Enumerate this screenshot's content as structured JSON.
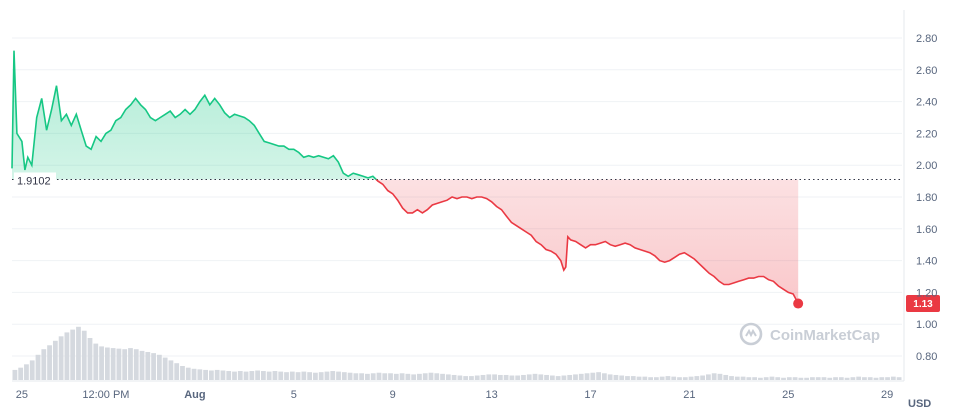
{
  "chart_data": {
    "type": "area",
    "ylim": [
      0.7,
      2.95
    ],
    "yticks": [
      "2.80",
      "2.60",
      "2.40",
      "2.20",
      "2.00",
      "1.80",
      "1.60",
      "1.40",
      "1.20",
      "1.00",
      "0.80"
    ],
    "x_labels": [
      {
        "label": "25",
        "day": 0
      },
      {
        "label": "12:00 PM",
        "day": 0.85
      },
      {
        "label": "Aug",
        "day": 1.75
      },
      {
        "label": "5",
        "day": 2.75
      },
      {
        "label": "9",
        "day": 3.75
      },
      {
        "label": "13",
        "day": 4.75
      },
      {
        "label": "17",
        "day": 5.75
      },
      {
        "label": "21",
        "day": 6.75
      },
      {
        "label": "25",
        "day": 7.75
      },
      {
        "label": "29",
        "day": 8.75
      }
    ],
    "x_range_days": [
      -0.1,
      8.9
    ],
    "unit": "USD",
    "reference": {
      "value": 1.9102,
      "label": "1.9102"
    },
    "last": {
      "value": 1.13,
      "label": "1.13"
    },
    "series_points": [
      [
        -0.1,
        1.98
      ],
      [
        -0.08,
        2.72
      ],
      [
        -0.05,
        2.2
      ],
      [
        0.0,
        2.15
      ],
      [
        0.03,
        1.97
      ],
      [
        0.06,
        2.05
      ],
      [
        0.1,
        2.0
      ],
      [
        0.15,
        2.3
      ],
      [
        0.2,
        2.42
      ],
      [
        0.25,
        2.22
      ],
      [
        0.3,
        2.35
      ],
      [
        0.35,
        2.5
      ],
      [
        0.4,
        2.28
      ],
      [
        0.45,
        2.32
      ],
      [
        0.5,
        2.25
      ],
      [
        0.55,
        2.32
      ],
      [
        0.6,
        2.22
      ],
      [
        0.65,
        2.12
      ],
      [
        0.7,
        2.1
      ],
      [
        0.75,
        2.18
      ],
      [
        0.8,
        2.15
      ],
      [
        0.85,
        2.2
      ],
      [
        0.9,
        2.22
      ],
      [
        0.95,
        2.28
      ],
      [
        1.0,
        2.3
      ],
      [
        1.05,
        2.35
      ],
      [
        1.1,
        2.38
      ],
      [
        1.15,
        2.42
      ],
      [
        1.2,
        2.38
      ],
      [
        1.25,
        2.35
      ],
      [
        1.3,
        2.3
      ],
      [
        1.35,
        2.28
      ],
      [
        1.4,
        2.3
      ],
      [
        1.45,
        2.32
      ],
      [
        1.5,
        2.34
      ],
      [
        1.55,
        2.3
      ],
      [
        1.6,
        2.32
      ],
      [
        1.65,
        2.35
      ],
      [
        1.7,
        2.32
      ],
      [
        1.75,
        2.35
      ],
      [
        1.8,
        2.4
      ],
      [
        1.85,
        2.44
      ],
      [
        1.9,
        2.38
      ],
      [
        1.95,
        2.42
      ],
      [
        2.0,
        2.38
      ],
      [
        2.05,
        2.33
      ],
      [
        2.1,
        2.3
      ],
      [
        2.15,
        2.32
      ],
      [
        2.2,
        2.31
      ],
      [
        2.25,
        2.3
      ],
      [
        2.3,
        2.28
      ],
      [
        2.35,
        2.25
      ],
      [
        2.4,
        2.2
      ],
      [
        2.45,
        2.15
      ],
      [
        2.5,
        2.14
      ],
      [
        2.55,
        2.13
      ],
      [
        2.6,
        2.12
      ],
      [
        2.65,
        2.12
      ],
      [
        2.7,
        2.1
      ],
      [
        2.75,
        2.1
      ],
      [
        2.8,
        2.08
      ],
      [
        2.85,
        2.05
      ],
      [
        2.9,
        2.06
      ],
      [
        2.95,
        2.05
      ],
      [
        3.0,
        2.06
      ],
      [
        3.05,
        2.05
      ],
      [
        3.1,
        2.04
      ],
      [
        3.15,
        2.06
      ],
      [
        3.2,
        2.02
      ],
      [
        3.25,
        1.95
      ],
      [
        3.3,
        1.93
      ],
      [
        3.35,
        1.95
      ],
      [
        3.4,
        1.94
      ],
      [
        3.45,
        1.93
      ],
      [
        3.5,
        1.92
      ],
      [
        3.55,
        1.93
      ],
      [
        3.6,
        1.9
      ],
      [
        3.65,
        1.88
      ],
      [
        3.7,
        1.84
      ],
      [
        3.75,
        1.82
      ],
      [
        3.8,
        1.78
      ],
      [
        3.85,
        1.73
      ],
      [
        3.9,
        1.7
      ],
      [
        3.95,
        1.7
      ],
      [
        4.0,
        1.72
      ],
      [
        4.05,
        1.7
      ],
      [
        4.1,
        1.72
      ],
      [
        4.15,
        1.75
      ],
      [
        4.2,
        1.76
      ],
      [
        4.25,
        1.77
      ],
      [
        4.3,
        1.78
      ],
      [
        4.35,
        1.8
      ],
      [
        4.4,
        1.79
      ],
      [
        4.45,
        1.8
      ],
      [
        4.5,
        1.8
      ],
      [
        4.55,
        1.79
      ],
      [
        4.6,
        1.8
      ],
      [
        4.65,
        1.8
      ],
      [
        4.7,
        1.79
      ],
      [
        4.75,
        1.77
      ],
      [
        4.8,
        1.74
      ],
      [
        4.85,
        1.72
      ],
      [
        4.9,
        1.68
      ],
      [
        4.95,
        1.64
      ],
      [
        5.0,
        1.62
      ],
      [
        5.05,
        1.6
      ],
      [
        5.1,
        1.58
      ],
      [
        5.15,
        1.56
      ],
      [
        5.2,
        1.52
      ],
      [
        5.25,
        1.5
      ],
      [
        5.3,
        1.47
      ],
      [
        5.35,
        1.46
      ],
      [
        5.4,
        1.44
      ],
      [
        5.45,
        1.4
      ],
      [
        5.48,
        1.34
      ],
      [
        5.5,
        1.36
      ],
      [
        5.52,
        1.55
      ],
      [
        5.55,
        1.53
      ],
      [
        5.6,
        1.52
      ],
      [
        5.65,
        1.5
      ],
      [
        5.7,
        1.48
      ],
      [
        5.75,
        1.5
      ],
      [
        5.8,
        1.5
      ],
      [
        5.85,
        1.51
      ],
      [
        5.9,
        1.52
      ],
      [
        5.95,
        1.5
      ],
      [
        6.0,
        1.49
      ],
      [
        6.05,
        1.5
      ],
      [
        6.1,
        1.51
      ],
      [
        6.15,
        1.5
      ],
      [
        6.2,
        1.48
      ],
      [
        6.25,
        1.47
      ],
      [
        6.3,
        1.46
      ],
      [
        6.35,
        1.45
      ],
      [
        6.4,
        1.43
      ],
      [
        6.45,
        1.4
      ],
      [
        6.5,
        1.39
      ],
      [
        6.55,
        1.4
      ],
      [
        6.6,
        1.42
      ],
      [
        6.65,
        1.44
      ],
      [
        6.7,
        1.45
      ],
      [
        6.75,
        1.43
      ],
      [
        6.8,
        1.41
      ],
      [
        6.85,
        1.38
      ],
      [
        6.9,
        1.35
      ],
      [
        6.95,
        1.32
      ],
      [
        7.0,
        1.3
      ],
      [
        7.05,
        1.27
      ],
      [
        7.1,
        1.25
      ],
      [
        7.15,
        1.25
      ],
      [
        7.2,
        1.26
      ],
      [
        7.25,
        1.27
      ],
      [
        7.3,
        1.28
      ],
      [
        7.35,
        1.29
      ],
      [
        7.4,
        1.29
      ],
      [
        7.45,
        1.3
      ],
      [
        7.5,
        1.3
      ],
      [
        7.55,
        1.28
      ],
      [
        7.6,
        1.27
      ],
      [
        7.65,
        1.24
      ],
      [
        7.7,
        1.22
      ],
      [
        7.75,
        1.2
      ],
      [
        7.8,
        1.19
      ],
      [
        7.85,
        1.13
      ]
    ],
    "volume_peak_note": "volume bars",
    "volume": [
      0.18,
      0.22,
      0.28,
      0.35,
      0.45,
      0.55,
      0.62,
      0.7,
      0.78,
      0.85,
      0.9,
      0.95,
      0.88,
      0.75,
      0.65,
      0.6,
      0.58,
      0.57,
      0.56,
      0.55,
      0.57,
      0.55,
      0.52,
      0.5,
      0.48,
      0.45,
      0.4,
      0.35,
      0.3,
      0.25,
      0.22,
      0.2,
      0.19,
      0.18,
      0.17,
      0.18,
      0.17,
      0.16,
      0.15,
      0.16,
      0.15,
      0.16,
      0.17,
      0.16,
      0.15,
      0.16,
      0.15,
      0.14,
      0.15,
      0.14,
      0.15,
      0.14,
      0.13,
      0.14,
      0.15,
      0.16,
      0.15,
      0.14,
      0.13,
      0.12,
      0.12,
      0.11,
      0.12,
      0.13,
      0.12,
      0.12,
      0.11,
      0.12,
      0.11,
      0.1,
      0.11,
      0.12,
      0.13,
      0.12,
      0.11,
      0.1,
      0.09,
      0.08,
      0.07,
      0.07,
      0.08,
      0.09,
      0.1,
      0.1,
      0.09,
      0.09,
      0.08,
      0.08,
      0.09,
      0.1,
      0.11,
      0.1,
      0.09,
      0.08,
      0.07,
      0.08,
      0.09,
      0.1,
      0.11,
      0.12,
      0.13,
      0.14,
      0.12,
      0.1,
      0.09,
      0.08,
      0.07,
      0.07,
      0.06,
      0.06,
      0.05,
      0.05,
      0.06,
      0.07,
      0.06,
      0.05,
      0.05,
      0.06,
      0.07,
      0.08,
      0.1,
      0.12,
      0.11,
      0.09,
      0.07,
      0.06,
      0.06,
      0.05,
      0.05,
      0.04,
      0.05,
      0.06,
      0.05,
      0.04,
      0.05,
      0.05,
      0.04,
      0.04,
      0.05,
      0.05,
      0.05,
      0.04,
      0.05,
      0.05,
      0.04,
      0.05,
      0.06,
      0.05,
      0.05,
      0.04,
      0.05,
      0.05,
      0.06,
      0.05
    ],
    "colors": {
      "up": "#16c784",
      "down": "#ea3943",
      "grid": "#eff2f5",
      "ref": "#323546",
      "volume": "#d5d9df"
    }
  },
  "watermark": "CoinMarketCap"
}
